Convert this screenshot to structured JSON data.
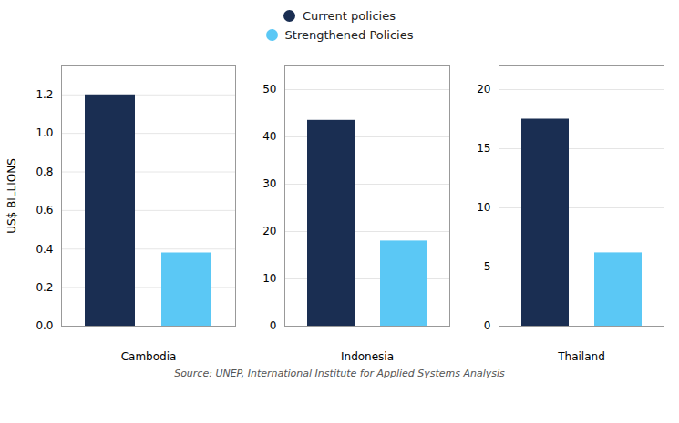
{
  "chart_data": [
    {
      "type": "bar",
      "xlabel": "Cambodia",
      "ylabel": "US$ BILLIONS",
      "categories": [
        null
      ],
      "series": [
        {
          "name": "Current policies",
          "color": "#1a2e52",
          "values": [
            1.2
          ]
        },
        {
          "name": "Strengthened Policies",
          "color": "#5bc8f5",
          "values": [
            0.38
          ]
        }
      ],
      "ylim": [
        0,
        1.35
      ],
      "yticks": [
        {
          "value": 0,
          "label": "0.0"
        },
        0.2,
        0.4,
        0.6,
        0.8,
        {
          "value": 1,
          "label": "1.0"
        },
        1.2
      ],
      "grid": true,
      "legend": "top",
      "caption": "Source: UNEP, International Institute for Applied Systems Analysis"
    },
    {
      "type": "bar",
      "xlabel": "Indonesia",
      "categories": [
        null
      ],
      "series": [
        {
          "name": "Current policies",
          "color": "#1a2e52",
          "values": [
            43.5
          ]
        },
        {
          "name": "Strengthened Policies",
          "color": "#5bc8f5",
          "values": [
            18.0
          ]
        }
      ],
      "ylim": [
        0,
        55
      ],
      "yticks": [
        0,
        10,
        20,
        30,
        40,
        50
      ],
      "grid": true,
      "legend": "top"
    },
    {
      "type": "bar",
      "xlabel": "Thailand",
      "categories": [
        null
      ],
      "series": [
        {
          "name": "Current policies",
          "color": "#1a2e52",
          "values": [
            17.5
          ]
        },
        {
          "name": "Strengthened Policies",
          "color": "#5bc8f5",
          "values": [
            6.2
          ]
        }
      ],
      "ylim": [
        0,
        22
      ],
      "yticks": [
        0,
        5,
        10,
        15,
        20
      ],
      "grid": true,
      "legend": "top"
    }
  ]
}
